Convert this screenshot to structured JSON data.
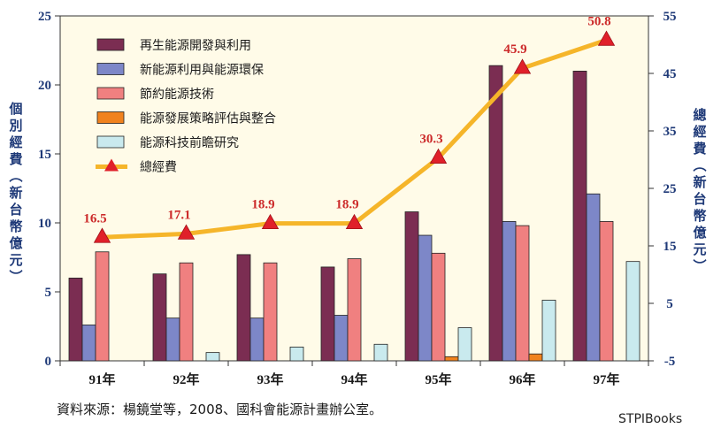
{
  "chart_data": {
    "type": "bar",
    "categories": [
      "91年",
      "92年",
      "93年",
      "94年",
      "95年",
      "96年",
      "97年"
    ],
    "ylabel": "個別經費（新台幣億元）",
    "y2label": "總經費（新台幣億元）",
    "ylim": [
      0,
      25
    ],
    "yticks": [
      0,
      5,
      10,
      15,
      20,
      25
    ],
    "y2lim": [
      -5,
      55
    ],
    "y2ticks": [
      -5,
      5,
      15,
      25,
      35,
      45,
      55
    ],
    "legend_position": "top-left",
    "grid": false,
    "series": [
      {
        "name": "再生能源開發與利用",
        "type": "bar",
        "color": "#7b2d52",
        "values": [
          6.0,
          6.3,
          7.7,
          6.8,
          10.8,
          21.4,
          21.0
        ]
      },
      {
        "name": "新能源利用與能源環保",
        "type": "bar",
        "color": "#7d87c8",
        "values": [
          2.6,
          3.1,
          3.1,
          3.3,
          9.1,
          10.1,
          12.1
        ]
      },
      {
        "name": "節約能源技術",
        "type": "bar",
        "color": "#f08080",
        "values": [
          7.9,
          7.1,
          7.1,
          7.4,
          7.8,
          9.8,
          10.1
        ]
      },
      {
        "name": "能源發展策略評估與整合",
        "type": "bar",
        "color": "#f0821e",
        "values": [
          0,
          0,
          0,
          0,
          0.3,
          0.5,
          0
        ]
      },
      {
        "name": "能源科技前瞻研究",
        "type": "bar",
        "color": "#c9eaee",
        "values": [
          0,
          0.6,
          1.0,
          1.2,
          2.4,
          4.4,
          7.2
        ]
      },
      {
        "name": "總經費",
        "type": "line",
        "axis": "right",
        "color": "#f5b52a",
        "marker_color": "#e0202a",
        "values": [
          16.5,
          17.1,
          18.9,
          18.9,
          30.3,
          45.9,
          50.8
        ],
        "labels": [
          "16.5",
          "17.1",
          "18.9",
          "18.9",
          "30.3",
          "45.9",
          "50.8"
        ]
      }
    ]
  },
  "footer": {
    "source": "資料來源：楊鏡堂等，2008、國科會能源計畫辦公室。",
    "watermark": "STPIBooks"
  },
  "colors": {
    "plot_bg": "#fffbe8",
    "axis_text": "#1f3a78",
    "total_label": "#cc2a2a"
  }
}
